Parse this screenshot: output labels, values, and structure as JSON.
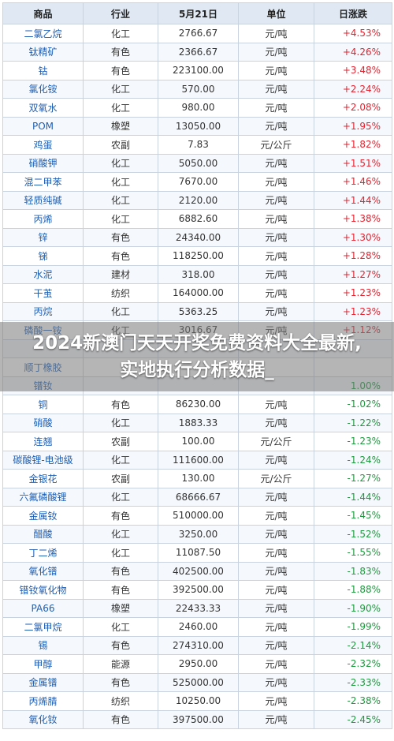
{
  "headers": [
    "商品",
    "行业",
    "5月21日",
    "单位",
    "日涨跌"
  ],
  "rows": [
    {
      "name": "二氯乙烷",
      "industry": "化工",
      "price": "2766.67",
      "unit": "元/吨",
      "change": "+4.53%",
      "dir": "up"
    },
    {
      "name": "钛精矿",
      "industry": "有色",
      "price": "2366.67",
      "unit": "元/吨",
      "change": "+4.26%",
      "dir": "up"
    },
    {
      "name": "钴",
      "industry": "有色",
      "price": "223100.00",
      "unit": "元/吨",
      "change": "+3.48%",
      "dir": "up"
    },
    {
      "name": "氯化铵",
      "industry": "化工",
      "price": "570.00",
      "unit": "元/吨",
      "change": "+2.24%",
      "dir": "up"
    },
    {
      "name": "双氧水",
      "industry": "化工",
      "price": "980.00",
      "unit": "元/吨",
      "change": "+2.08%",
      "dir": "up"
    },
    {
      "name": "POM",
      "industry": "橡塑",
      "price": "13050.00",
      "unit": "元/吨",
      "change": "+1.95%",
      "dir": "up"
    },
    {
      "name": "鸡蛋",
      "industry": "农副",
      "price": "7.83",
      "unit": "元/公斤",
      "change": "+1.82%",
      "dir": "up"
    },
    {
      "name": "硝酸钾",
      "industry": "化工",
      "price": "5050.00",
      "unit": "元/吨",
      "change": "+1.51%",
      "dir": "up"
    },
    {
      "name": "混二甲苯",
      "industry": "化工",
      "price": "7670.00",
      "unit": "元/吨",
      "change": "+1.46%",
      "dir": "up"
    },
    {
      "name": "轻质纯碱",
      "industry": "化工",
      "price": "2120.00",
      "unit": "元/吨",
      "change": "+1.44%",
      "dir": "up"
    },
    {
      "name": "丙烯",
      "industry": "化工",
      "price": "6882.60",
      "unit": "元/吨",
      "change": "+1.38%",
      "dir": "up"
    },
    {
      "name": "锌",
      "industry": "有色",
      "price": "24340.00",
      "unit": "元/吨",
      "change": "+1.30%",
      "dir": "up"
    },
    {
      "name": "锑",
      "industry": "有色",
      "price": "118250.00",
      "unit": "元/吨",
      "change": "+1.28%",
      "dir": "up"
    },
    {
      "name": "水泥",
      "industry": "建材",
      "price": "318.00",
      "unit": "元/吨",
      "change": "+1.27%",
      "dir": "up"
    },
    {
      "name": "干茧",
      "industry": "纺织",
      "price": "164000.00",
      "unit": "元/吨",
      "change": "+1.23%",
      "dir": "up"
    },
    {
      "name": "丙烷",
      "industry": "化工",
      "price": "5363.25",
      "unit": "元/吨",
      "change": "+1.23%",
      "dir": "up"
    },
    {
      "name": "磷酸一铵",
      "industry": "化工",
      "price": "3016.67",
      "unit": "元/吨",
      "change": "+1.12%",
      "dir": "up"
    },
    {
      "name": "",
      "industry": "",
      "price": "",
      "unit": "",
      "change": "",
      "dir": "up"
    },
    {
      "name": "顺丁橡胶",
      "industry": "",
      "price": "",
      "unit": "",
      "change": "",
      "dir": "up"
    },
    {
      "name": "镨钕",
      "industry": "",
      "price": "",
      "unit": "",
      "change": "1.00%",
      "dir": "down"
    },
    {
      "name": "铜",
      "industry": "有色",
      "price": "86230.00",
      "unit": "元/吨",
      "change": "-1.02%",
      "dir": "down"
    },
    {
      "name": "硝酸",
      "industry": "化工",
      "price": "1883.33",
      "unit": "元/吨",
      "change": "-1.22%",
      "dir": "down"
    },
    {
      "name": "连翘",
      "industry": "农副",
      "price": "100.00",
      "unit": "元/公斤",
      "change": "-1.23%",
      "dir": "down"
    },
    {
      "name": "碳酸锂-电池级",
      "industry": "化工",
      "price": "111600.00",
      "unit": "元/吨",
      "change": "-1.24%",
      "dir": "down"
    },
    {
      "name": "金银花",
      "industry": "农副",
      "price": "130.00",
      "unit": "元/公斤",
      "change": "-1.27%",
      "dir": "down"
    },
    {
      "name": "六氟磷酸锂",
      "industry": "化工",
      "price": "68666.67",
      "unit": "元/吨",
      "change": "-1.44%",
      "dir": "down"
    },
    {
      "name": "金属钕",
      "industry": "有色",
      "price": "510000.00",
      "unit": "元/吨",
      "change": "-1.45%",
      "dir": "down"
    },
    {
      "name": "醋酸",
      "industry": "化工",
      "price": "3250.00",
      "unit": "元/吨",
      "change": "-1.52%",
      "dir": "down"
    },
    {
      "name": "丁二烯",
      "industry": "化工",
      "price": "11087.50",
      "unit": "元/吨",
      "change": "-1.55%",
      "dir": "down"
    },
    {
      "name": "氧化镨",
      "industry": "有色",
      "price": "402500.00",
      "unit": "元/吨",
      "change": "-1.83%",
      "dir": "down"
    },
    {
      "name": "镨钕氧化物",
      "industry": "有色",
      "price": "392500.00",
      "unit": "元/吨",
      "change": "-1.88%",
      "dir": "down"
    },
    {
      "name": "PA66",
      "industry": "橡塑",
      "price": "22433.33",
      "unit": "元/吨",
      "change": "-1.90%",
      "dir": "down"
    },
    {
      "name": "二氯甲烷",
      "industry": "化工",
      "price": "2460.00",
      "unit": "元/吨",
      "change": "-1.99%",
      "dir": "down"
    },
    {
      "name": "锡",
      "industry": "有色",
      "price": "274310.00",
      "unit": "元/吨",
      "change": "-2.14%",
      "dir": "down"
    },
    {
      "name": "甲醇",
      "industry": "能源",
      "price": "2950.00",
      "unit": "元/吨",
      "change": "-2.32%",
      "dir": "down"
    },
    {
      "name": "金属镨",
      "industry": "有色",
      "price": "525000.00",
      "unit": "元/吨",
      "change": "-2.33%",
      "dir": "down"
    },
    {
      "name": "丙烯腈",
      "industry": "纺织",
      "price": "10250.00",
      "unit": "元/吨",
      "change": "-2.38%",
      "dir": "down"
    },
    {
      "name": "氧化钕",
      "industry": "有色",
      "price": "397500.00",
      "unit": "元/吨",
      "change": "-2.45%",
      "dir": "down"
    }
  ],
  "overlay": {
    "text": "2024新澳门天天开奖免费资料大全最新,实地执行分析数据_"
  },
  "colors": {
    "up": "#e6222f",
    "down": "#1d9a3e",
    "header_bg": "#dfe8f3",
    "name": "#1f5fb4"
  }
}
